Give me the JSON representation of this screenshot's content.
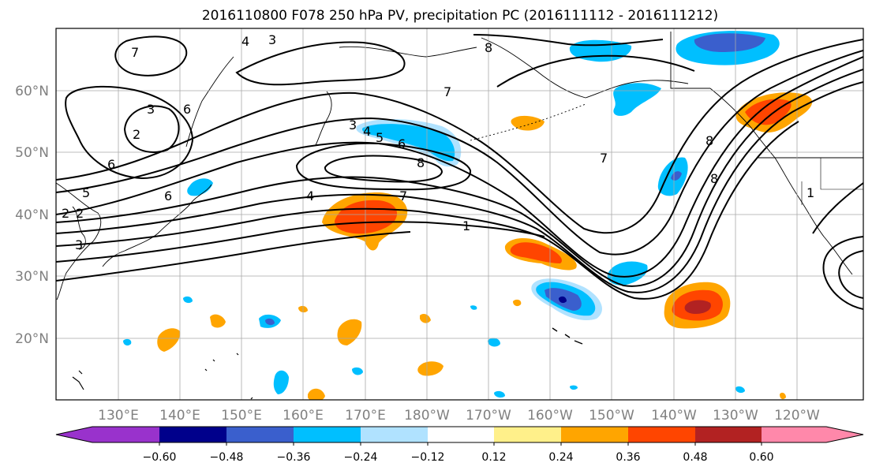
{
  "title": "2016110800 F078 250 hPa PV, precipitation PC (2016111112 - 2016111212)",
  "map": {
    "projection": "PlateCarree",
    "lon_range": [
      121,
      252
    ],
    "lat_range": [
      10,
      70
    ],
    "gridlines": true,
    "lon_labels": [
      "130°E",
      "140°E",
      "150°E",
      "160°E",
      "170°E",
      "180°W",
      "170°W",
      "160°W",
      "150°W",
      "140°W",
      "130°W",
      "120°W"
    ],
    "lat_labels": [
      "20°N",
      "30°N",
      "40°N",
      "50°N",
      "60°N"
    ]
  },
  "pv_contours": {
    "labels": [
      "1",
      "2",
      "3",
      "4",
      "5",
      "6",
      "7",
      "8"
    ]
  },
  "colorbar": {
    "ticks": [
      "−0.60",
      "−0.48",
      "−0.36",
      "−0.24",
      "−0.12",
      "0.12",
      "0.24",
      "0.36",
      "0.48",
      "0.60"
    ],
    "colors": {
      "under": "#9932cc",
      "minus_060_048": "#00008b",
      "minus_048_036": "#3a5fcd",
      "minus_036_024": "#00bfff",
      "minus_024_012": "#b0e2ff",
      "neutral": "#ffffff",
      "plus_012_024": "#fff08a",
      "plus_024_036": "#ffa500",
      "plus_036_048": "#ff4500",
      "plus_048_060": "#b22222",
      "over": "#ff88aa"
    }
  }
}
